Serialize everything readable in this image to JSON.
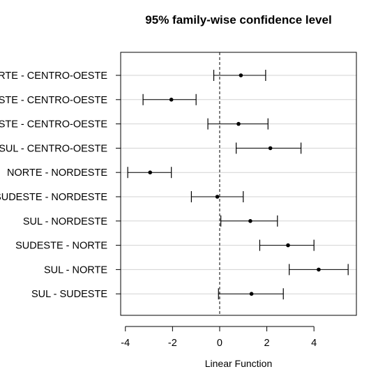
{
  "chart_data": {
    "type": "scatter",
    "title": "95% family-wise confidence level",
    "xlabel": "Linear Function",
    "ylabel": "",
    "xlim": [
      -4.2,
      5.8
    ],
    "xticks": [
      -4,
      -2,
      0,
      2,
      4
    ],
    "xtick_labels": [
      "-4",
      "-2",
      "0",
      "2",
      "4"
    ],
    "grid": "horizontal",
    "reference_line": 0,
    "comparisons": [
      {
        "label": "NORTE - CENTRO-OESTE",
        "estimate": 0.9,
        "lower": -0.25,
        "upper": 1.95
      },
      {
        "label": "NORDESTE - CENTRO-OESTE",
        "estimate": -2.05,
        "lower": -3.25,
        "upper": -1.0
      },
      {
        "label": "SUDESTE - CENTRO-OESTE",
        "estimate": 0.8,
        "lower": -0.5,
        "upper": 2.05
      },
      {
        "label": "SUL - CENTRO-OESTE",
        "estimate": 2.15,
        "lower": 0.7,
        "upper": 3.45
      },
      {
        "label": "NORTE - NORDESTE",
        "estimate": -2.95,
        "lower": -3.9,
        "upper": -2.05
      },
      {
        "label": "SUDESTE - NORDESTE",
        "estimate": -0.1,
        "lower": -1.2,
        "upper": 1.0
      },
      {
        "label": "SUL - NORDESTE",
        "estimate": 1.3,
        "lower": 0.05,
        "upper": 2.45
      },
      {
        "label": "SUDESTE - NORTE",
        "estimate": 2.9,
        "lower": 1.7,
        "upper": 4.0
      },
      {
        "label": "SUL - NORTE",
        "estimate": 4.2,
        "lower": 2.95,
        "upper": 5.45
      },
      {
        "label": "SUL - SUDESTE",
        "estimate": 1.35,
        "lower": -0.05,
        "upper": 2.7
      }
    ]
  }
}
